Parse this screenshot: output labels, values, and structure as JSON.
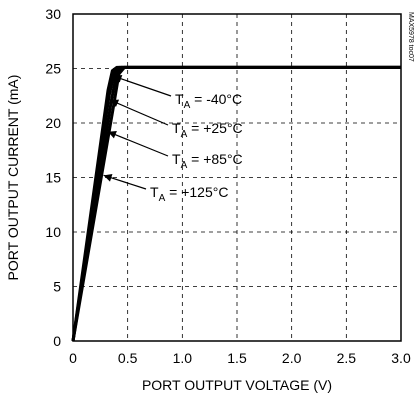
{
  "chart_data": {
    "type": "line",
    "xlabel": "PORT OUTPUT VOLTAGE (V)",
    "ylabel": "PORT OUTPUT CURRENT (mA)",
    "xlim": [
      0,
      3.0
    ],
    "ylim": [
      0,
      30
    ],
    "x_ticks": [
      "0",
      "0.5",
      "1.0",
      "1.5",
      "2.0",
      "2.5",
      "3.0"
    ],
    "y_ticks": [
      "0",
      "5",
      "10",
      "15",
      "20",
      "25",
      "30"
    ],
    "grid": "dashed vertical and horizontal lines",
    "figure_id": "MAX5978 toc07",
    "series": [
      {
        "name": "TA = -40°C",
        "points": [
          [
            0,
            0
          ],
          [
            0.32,
            23.0
          ],
          [
            0.36,
            24.8
          ],
          [
            0.4,
            25.1
          ],
          [
            3.0,
            25.1
          ]
        ]
      },
      {
        "name": "TA = +25°C",
        "points": [
          [
            0,
            0
          ],
          [
            0.33,
            22.5
          ],
          [
            0.38,
            24.7
          ],
          [
            0.42,
            25.1
          ],
          [
            3.0,
            25.1
          ]
        ]
      },
      {
        "name": "TA = +85°C",
        "points": [
          [
            0,
            0
          ],
          [
            0.35,
            22.0
          ],
          [
            0.4,
            24.6
          ],
          [
            0.44,
            25.1
          ],
          [
            3.0,
            25.1
          ]
        ]
      },
      {
        "name": "TA = +125°C",
        "points": [
          [
            0,
            0
          ],
          [
            0.37,
            21.5
          ],
          [
            0.42,
            24.5
          ],
          [
            0.47,
            25.1
          ],
          [
            3.0,
            25.1
          ]
        ]
      }
    ],
    "annotations": [
      {
        "label_main": "T",
        "label_sub": "A",
        "label_rest": " = -40°C",
        "target": [
          0.37,
          24.3
        ]
      },
      {
        "label_main": "T",
        "label_sub": "A",
        "label_rest": " = +25°C",
        "target": [
          0.34,
          22.1
        ]
      },
      {
        "label_main": "T",
        "label_sub": "A",
        "label_rest": " = +85°C",
        "target": [
          0.32,
          19.2
        ]
      },
      {
        "label_main": "T",
        "label_sub": "A",
        "label_rest": " = +125°C",
        "target": [
          0.28,
          15.2
        ]
      }
    ]
  }
}
